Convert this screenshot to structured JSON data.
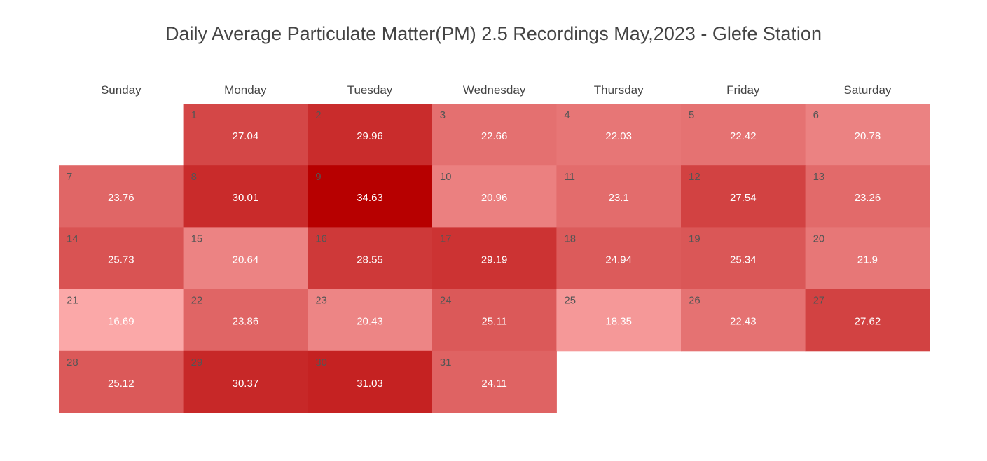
{
  "chart_data": {
    "type": "heatmap",
    "title": "Daily Average Particulate Matter(PM) 2.5 Recordings May,2023 - Glefe Station",
    "weekdays": [
      "Sunday",
      "Monday",
      "Tuesday",
      "Wednesday",
      "Thursday",
      "Friday",
      "Saturday"
    ],
    "month_start_weekday": 1,
    "days": [
      1,
      2,
      3,
      4,
      5,
      6,
      7,
      8,
      9,
      10,
      11,
      12,
      13,
      14,
      15,
      16,
      17,
      18,
      19,
      20,
      21,
      22,
      23,
      24,
      25,
      26,
      27,
      28,
      29,
      30,
      31
    ],
    "values": [
      27.04,
      29.96,
      22.66,
      22.03,
      22.42,
      20.78,
      23.76,
      30.01,
      34.63,
      20.96,
      23.1,
      27.54,
      23.26,
      25.73,
      20.64,
      28.55,
      29.19,
      24.94,
      25.34,
      21.9,
      16.69,
      23.86,
      20.43,
      25.11,
      18.35,
      22.43,
      27.62,
      25.12,
      30.37,
      31.03,
      24.11
    ],
    "color_scale": {
      "low": "#fba8a8",
      "high": "#b70000",
      "vmin": 16.69,
      "vmax": 34.63
    },
    "text_colors": {
      "day": "#555555",
      "value": "#ffffff"
    }
  }
}
